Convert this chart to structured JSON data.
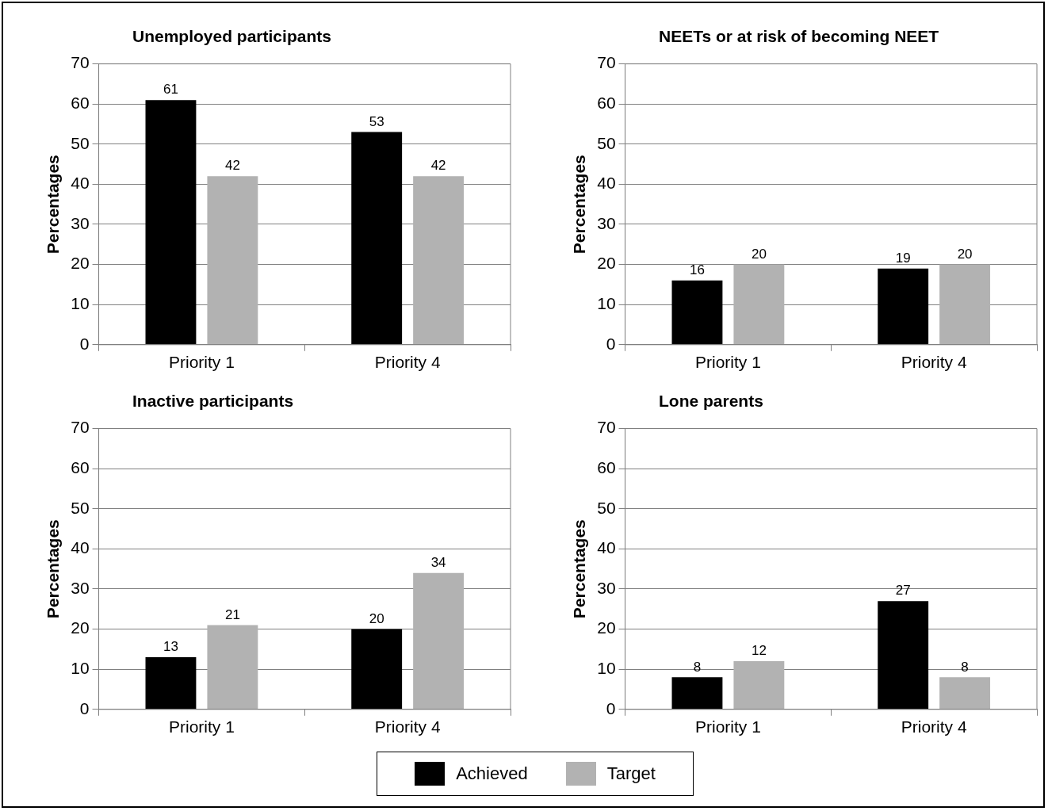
{
  "chart_data": [
    {
      "type": "bar",
      "title": "Unemployed participants",
      "ylabel": "Percentages",
      "categories": [
        "Priority 1",
        "Priority 4"
      ],
      "series": [
        {
          "color": "#000000",
          "values": [
            61,
            53
          ],
          "value_labels": [
            "61",
            "53"
          ]
        },
        {
          "color": "#b2b2b2",
          "values": [
            42,
            42
          ],
          "value_labels": [
            "42",
            "42"
          ]
        }
      ],
      "ylim": [
        0,
        70
      ],
      "yticks": [
        0,
        10,
        20,
        30,
        40,
        50,
        60,
        70
      ],
      "grid": "y"
    },
    {
      "type": "bar",
      "title": "NEETs or at risk of becoming NEET",
      "ylabel": "Percentages",
      "categories": [
        "Priority 1",
        "Priority 4"
      ],
      "series": [
        {
          "color": "#000000",
          "values": [
            16,
            19
          ],
          "value_labels": [
            "16",
            "19"
          ]
        },
        {
          "color": "#b2b2b2",
          "values": [
            20,
            20
          ],
          "value_labels": [
            "20",
            "20"
          ]
        }
      ],
      "ylim": [
        0,
        70
      ],
      "yticks": [
        0,
        10,
        20,
        30,
        40,
        50,
        60,
        70
      ],
      "grid": "y"
    },
    {
      "type": "bar",
      "title": "Inactive participants",
      "ylabel": "Percentages",
      "categories": [
        "Priority 1",
        "Priority 4"
      ],
      "series": [
        {
          "color": "#000000",
          "values": [
            13,
            20
          ],
          "value_labels": [
            "13",
            "20"
          ]
        },
        {
          "color": "#b2b2b2",
          "values": [
            21,
            34
          ],
          "value_labels": [
            "21",
            "34"
          ]
        }
      ],
      "ylim": [
        0,
        70
      ],
      "yticks": [
        0,
        10,
        20,
        30,
        40,
        50,
        60,
        70
      ],
      "grid": "y"
    },
    {
      "type": "bar",
      "title": "Lone parents",
      "ylabel": "Percentages",
      "categories": [
        "Priority 1",
        "Priority 4"
      ],
      "series": [
        {
          "name": "Achieved",
          "color": "#000000",
          "values": [
            8,
            27
          ],
          "value_labels": [
            "8",
            "27"
          ]
        },
        {
          "name": "Target",
          "color": "#b2b2b2",
          "values": [
            12,
            8
          ],
          "value_labels": [
            "12",
            "8"
          ]
        }
      ],
      "ylim": [
        0,
        70
      ],
      "yticks": [
        0,
        10,
        20,
        30,
        40,
        50,
        60,
        70
      ],
      "grid": "y",
      "legend": "bottom"
    }
  ]
}
